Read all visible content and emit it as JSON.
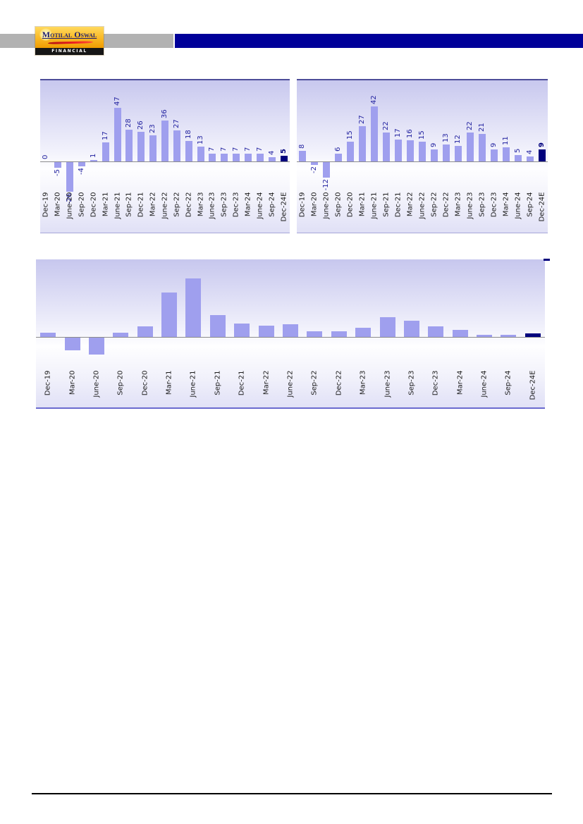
{
  "header": {
    "logo": {
      "name": "Motilal Oswal",
      "tagline": "FINANCIAL SERVICES"
    },
    "colors": {
      "gray_bar": "#b2b2b2",
      "blue_bar": "#000099",
      "logo_orange": "#f6a800",
      "logo_text_navy": "#1e1e6e",
      "logo_swoosh_red": "#ee2222"
    }
  },
  "chart_data": [
    {
      "type": "bar",
      "position": "top-left",
      "categories": [
        "Dec-19",
        "Mar-20",
        "June-20",
        "Sep-20",
        "Dec-20",
        "Mar-21",
        "June-21",
        "Sep-21",
        "Dec-21",
        "Mar-22",
        "June-22",
        "Sep-22",
        "Dec-22",
        "Mar-23",
        "June-23",
        "Sep-23",
        "Dec-23",
        "Mar-24",
        "June-24",
        "Sep-24",
        "Dec-24E"
      ],
      "values": [
        0,
        -5,
        -26,
        -4,
        1,
        17,
        47,
        28,
        26,
        23,
        36,
        27,
        18,
        13,
        7,
        7,
        7,
        7,
        7,
        4,
        5
      ],
      "show_value_labels": true,
      "value_label_rotation": 90,
      "highlight_index": 20,
      "bar_color": "#9f9fee",
      "highlight_color": "#00007d",
      "value_label_color": "#1f1f9e",
      "category_label_color": "#1b1b1b",
      "legend": "none",
      "grid": "off"
    },
    {
      "type": "bar",
      "position": "top-right",
      "categories": [
        "Dec-19",
        "Mar-20",
        "June-20",
        "Sep-20",
        "Dec-20",
        "Mar-21",
        "June-21",
        "Sep-21",
        "Dec-21",
        "Mar-22",
        "June-22",
        "Sep-22",
        "Dec-22",
        "Mar-23",
        "June-23",
        "Sep-23",
        "Dec-23",
        "Mar-24",
        "June-24",
        "Sep-24",
        "Dec-24E"
      ],
      "values": [
        8,
        -2,
        -12,
        6,
        15,
        27,
        42,
        22,
        17,
        16,
        15,
        9,
        13,
        12,
        22,
        21,
        9,
        11,
        5,
        4,
        9
      ],
      "show_value_labels": true,
      "value_label_rotation": 90,
      "highlight_index": 20,
      "bar_color": "#9f9fee",
      "highlight_color": "#00007d",
      "value_label_color": "#1f1f9e",
      "category_label_color": "#1b1b1b",
      "legend": "none",
      "grid": "off"
    },
    {
      "type": "bar",
      "position": "bottom-wide",
      "categories": [
        "Dec-19",
        "Mar-20",
        "June-20",
        "Sep-20",
        "Dec-20",
        "Mar-21",
        "June-21",
        "Sep-21",
        "Dec-21",
        "Mar-22",
        "June-22",
        "Sep-22",
        "Dec-22",
        "Mar-23",
        "June-23",
        "Sep-23",
        "Dec-23",
        "Mar-24",
        "June-24",
        "Sep-24",
        "Dec-24E"
      ],
      "values": [
        4,
        -11,
        -15,
        4,
        9,
        39,
        51,
        19,
        12,
        10,
        11,
        5,
        5,
        8,
        17,
        14,
        9,
        6,
        2,
        2,
        3
      ],
      "values_estimated": true,
      "show_value_labels": false,
      "highlight_index": 20,
      "bar_color": "#9f9fee",
      "highlight_color": "#00007d",
      "category_label_color": "#1b1b1b",
      "legend": "none",
      "grid": "off"
    }
  ],
  "footer": {
    "rule_color": "#000000"
  }
}
